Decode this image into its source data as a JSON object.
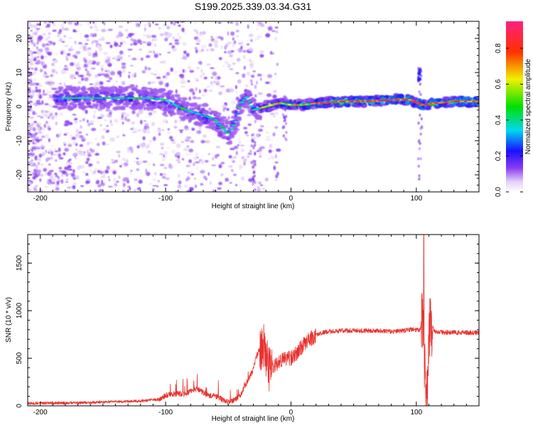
{
  "title": "S199.2025.339.03.34.G31",
  "chart_data": [
    {
      "type": "heatmap",
      "xlabel": "Height of straight line (km)",
      "ylabel": "Frequency (Hz)",
      "xlim": [
        -210,
        150
      ],
      "ylim": [
        -25,
        25
      ],
      "xticks": [
        -200,
        -100,
        0,
        100
      ],
      "yticks": [
        -20,
        -10,
        0,
        10,
        20
      ],
      "colorbar": {
        "label": "Normalized spectral amplitude",
        "range": [
          0,
          0.95
        ],
        "ticks": [
          "0.0",
          "0.2",
          "0.4",
          "0.6",
          "0.8"
        ],
        "colormap": "rainbow (white-purple-blue-cyan-green-yellow-red-magenta)"
      },
      "ridge": {
        "x": [
          -185,
          -170,
          -150,
          -130,
          -115,
          -100,
          -90,
          -80,
          -70,
          -62,
          -55,
          -50,
          -45,
          -40,
          -35,
          -30,
          -25,
          -20,
          -15,
          -10,
          -5,
          0,
          10,
          20,
          40,
          60,
          80,
          95,
          105,
          115,
          130,
          150
        ],
        "y": [
          2.5,
          2.5,
          2.5,
          2.5,
          2.5,
          2.0,
          0,
          -1.5,
          -2.5,
          -3.5,
          -6.0,
          -8.0,
          -5.0,
          1.0,
          3.0,
          -1.0,
          -0.5,
          0,
          0.5,
          1.0,
          0.8,
          0.5,
          0.5,
          1.0,
          1.5,
          1.5,
          2.0,
          2.0,
          0.5,
          1.0,
          1.5,
          1.5
        ]
      }
    },
    {
      "type": "line",
      "xlabel": "Height of straight line (km)",
      "ylabel": "SNR (10 * v/v)",
      "xlim": [
        -210,
        150
      ],
      "ylim": [
        0,
        1800
      ],
      "xticks": [
        -200,
        -100,
        0,
        100
      ],
      "yticks": [
        0,
        500,
        1000,
        1500
      ],
      "series": [
        {
          "color": "#e8322e",
          "x": [
            -210,
            -200,
            -180,
            -160,
            -140,
            -120,
            -105,
            -100,
            -95,
            -90,
            -85,
            -80,
            -75,
            -70,
            -65,
            -60,
            -55,
            -50,
            -45,
            -40,
            -35,
            -30,
            -28,
            -25,
            -22,
            -20,
            -18,
            -15,
            -10,
            -5,
            0,
            5,
            10,
            15,
            20,
            25,
            30,
            40,
            50,
            60,
            70,
            80,
            90,
            95,
            100,
            103,
            105,
            106,
            107,
            108,
            109,
            110,
            111,
            112,
            115,
            120,
            130,
            140,
            150
          ],
          "y": [
            25,
            30,
            30,
            35,
            45,
            50,
            70,
            110,
            120,
            130,
            120,
            150,
            180,
            140,
            110,
            100,
            70,
            40,
            60,
            120,
            250,
            380,
            500,
            600,
            650,
            550,
            400,
            420,
            450,
            500,
            500,
            560,
            640,
            700,
            740,
            770,
            780,
            790,
            790,
            790,
            790,
            780,
            790,
            800,
            800,
            800,
            950,
            700,
            300,
            150,
            200,
            600,
            900,
            850,
            780,
            770,
            770,
            770,
            770
          ]
        }
      ]
    }
  ]
}
